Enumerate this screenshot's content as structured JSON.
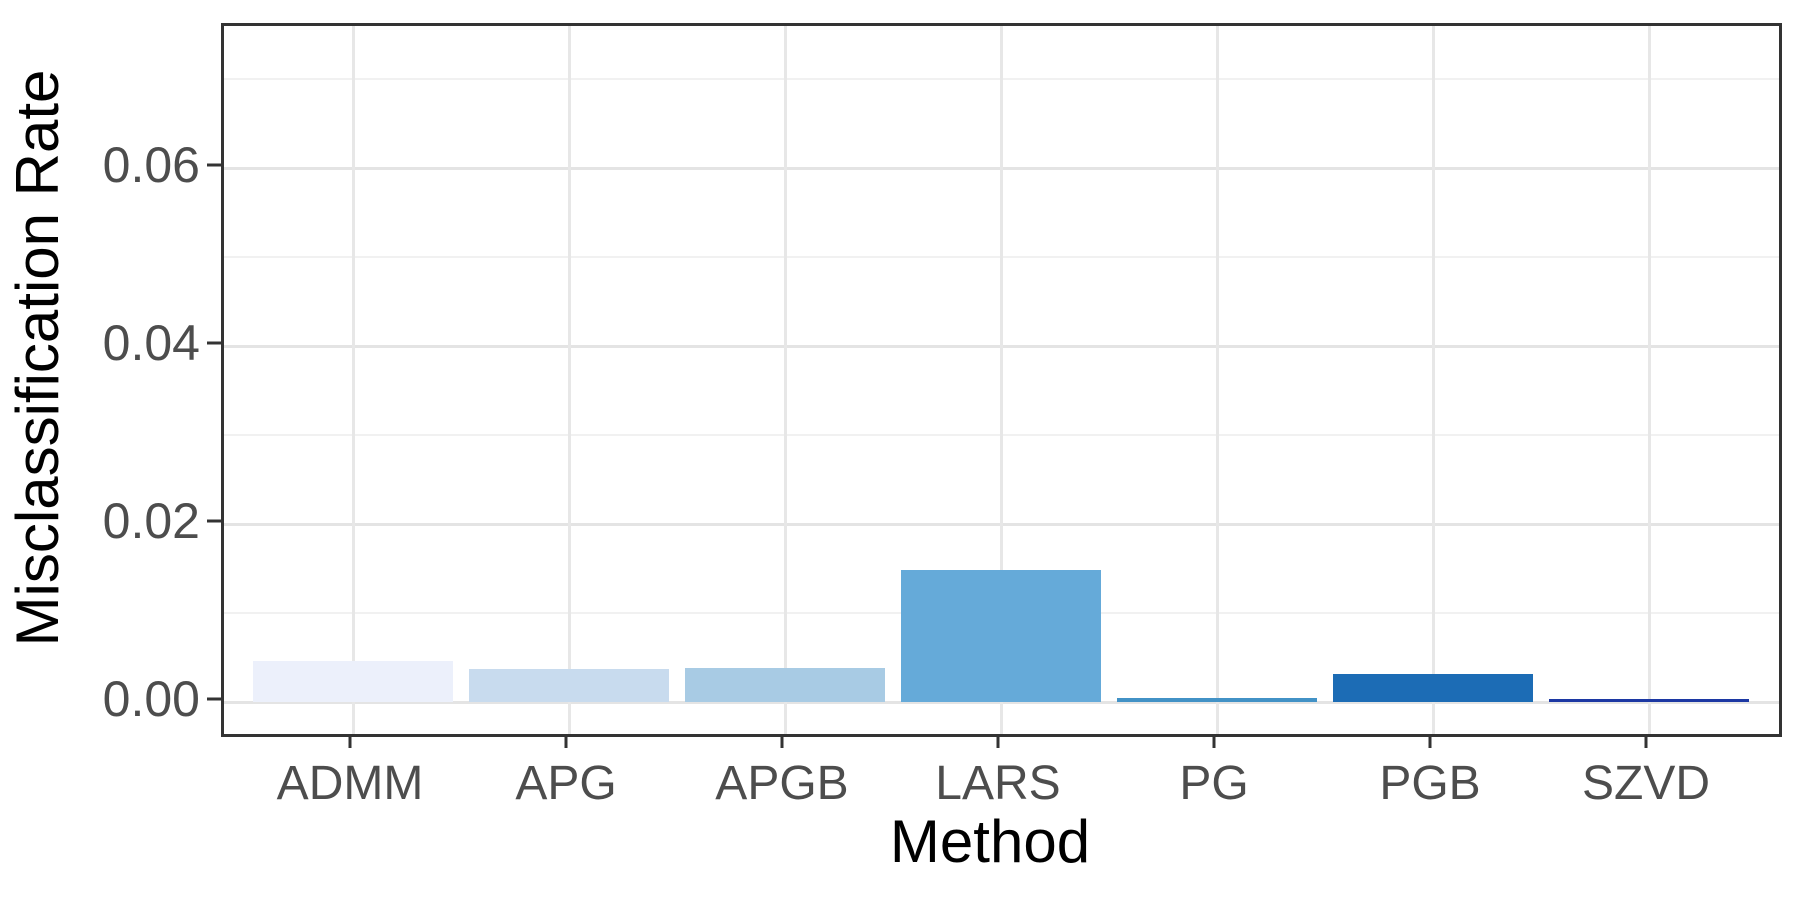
{
  "figure": {
    "background_color": "#FFFFFF",
    "panel_border_color": "#333333",
    "grid_major_color": "#E4E4E4",
    "grid_minor_color": "#F1F1F1",
    "axis_text_color": "#4D4D4D",
    "axis_title_color": "#000000"
  },
  "chart_data": {
    "type": "bar",
    "title": "",
    "xlabel": "Method",
    "ylabel": "Misclassification Rate",
    "categories": [
      "ADMM",
      "APG",
      "APGB",
      "LARS",
      "PG",
      "PGB",
      "SZVD"
    ],
    "values": [
      0.0046,
      0.0037,
      0.0038,
      0.0148,
      0.0004,
      0.0031,
      0.0003
    ],
    "bar_colors": [
      "#ECF0FB",
      "#C8DBEE",
      "#A8CBE4",
      "#65AAD9",
      "#4292C6",
      "#1C6CB5",
      "#1C38A3"
    ],
    "ylim": [
      0,
      0.076
    ],
    "yticks": [
      0.0,
      0.02,
      0.04,
      0.06
    ],
    "ytick_labels": [
      "0.00",
      "0.02",
      "0.04",
      "0.06"
    ],
    "yticks_minor": [
      0.01,
      0.03,
      0.05,
      0.07
    ],
    "grid": true,
    "legend_position": "none"
  }
}
